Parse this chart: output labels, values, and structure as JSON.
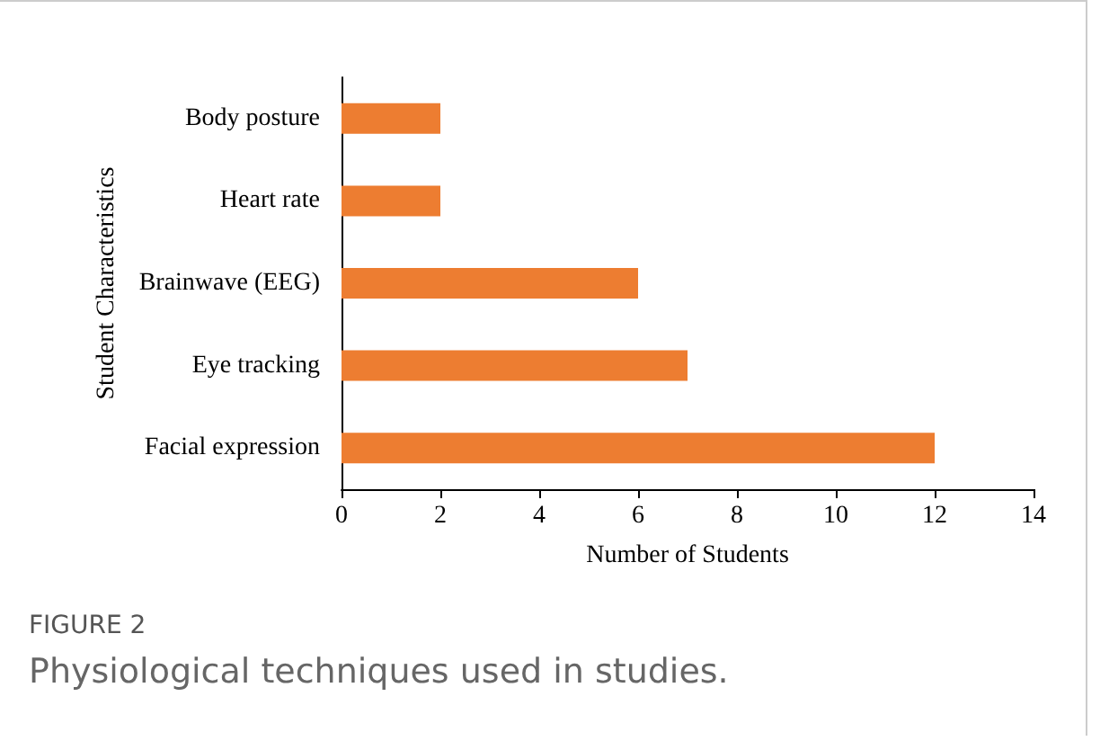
{
  "chart_data": {
    "type": "bar",
    "orientation": "horizontal",
    "ylabel": "Student Characteristics",
    "xlabel": "Number of Students",
    "categories": [
      "Body posture",
      "Heart rate",
      "Brainwave (EEG)",
      "Eye tracking",
      "Facial expression"
    ],
    "values": [
      2,
      2,
      6,
      7,
      12
    ],
    "color": "#ed7d31",
    "xlim": [
      0,
      14
    ],
    "xticks": [
      0,
      2,
      4,
      6,
      8,
      10,
      12,
      14
    ],
    "annotations": [
      "FIGURE 2",
      "Physiological techniques used in studies."
    ]
  }
}
